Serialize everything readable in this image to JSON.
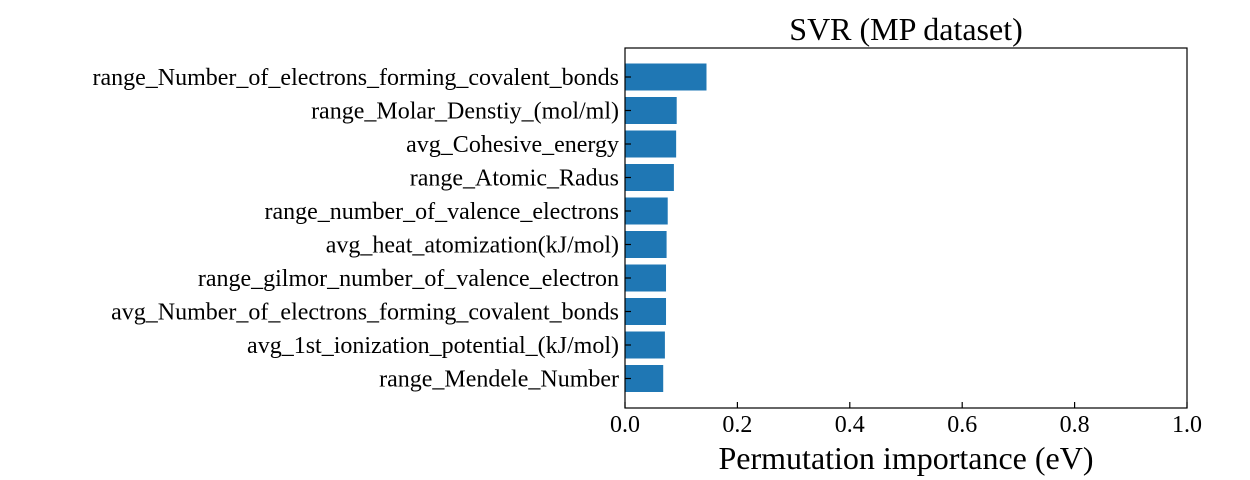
{
  "chart_data": {
    "type": "bar",
    "orientation": "horizontal",
    "title": "SVR (MP dataset)",
    "xlabel": "Permutation importance (eV)",
    "ylabel": "",
    "xlim": [
      0,
      1.0
    ],
    "xticks": [
      "0.0",
      "0.2",
      "0.4",
      "0.6",
      "0.8",
      "1.0"
    ],
    "bar_color": "#1f77b4",
    "grid": false,
    "categories": [
      "range_Number_of_electrons_forming_covalent_bonds",
      "range_Molar_Denstiy_(mol/ml)",
      "avg_Cohesive_energy",
      "range_Atomic_Radus",
      "range_number_of_valence_electrons",
      "avg_heat_atomization(kJ/mol)",
      "range_gilmor_number_of_valence_electron",
      "avg_Number_of_electrons_forming_covalent_bonds",
      "avg_1st_ionization_potential_(kJ/mol)",
      "range_Mendele_Number"
    ],
    "values": [
      0.145,
      0.092,
      0.091,
      0.087,
      0.076,
      0.074,
      0.073,
      0.073,
      0.071,
      0.068
    ]
  }
}
